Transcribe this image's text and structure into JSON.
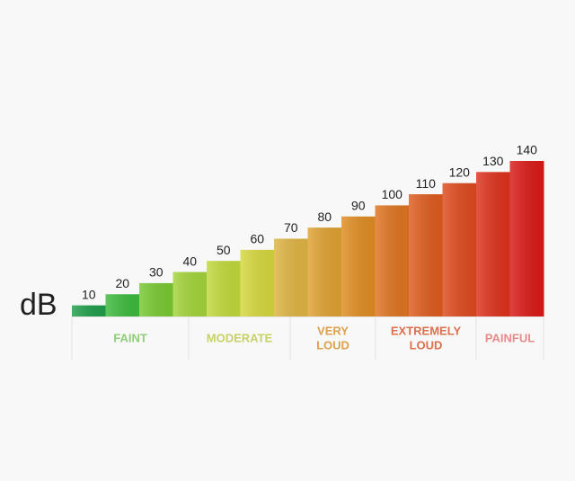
{
  "chart_data": {
    "type": "bar",
    "y_label": "dB",
    "values": [
      10,
      20,
      30,
      40,
      50,
      60,
      70,
      80,
      90,
      100,
      110,
      120,
      130,
      140
    ],
    "colors": [
      "#1f9e4a",
      "#3dba3d",
      "#79c932",
      "#a3d43a",
      "#c2d93b",
      "#d6d83f",
      "#e0b443",
      "#e0a232",
      "#e08d22",
      "#df7420",
      "#df5c1f",
      "#de4a1e",
      "#de321c",
      "#da1a17"
    ],
    "ylim": [
      0,
      140
    ],
    "groups": [
      {
        "label": [
          "FAINT"
        ],
        "color": "#8fcf78"
      },
      {
        "label": [
          "MODERATE"
        ],
        "color": "#c6d266"
      },
      {
        "label": [
          "VERY",
          "LOUD"
        ],
        "color": "#dea04a"
      },
      {
        "label": [
          "EXTREMELY",
          "LOUD"
        ],
        "color": "#df6f4c"
      },
      {
        "label": [
          "PAINFUL"
        ],
        "color": "#e88a8a"
      }
    ]
  }
}
